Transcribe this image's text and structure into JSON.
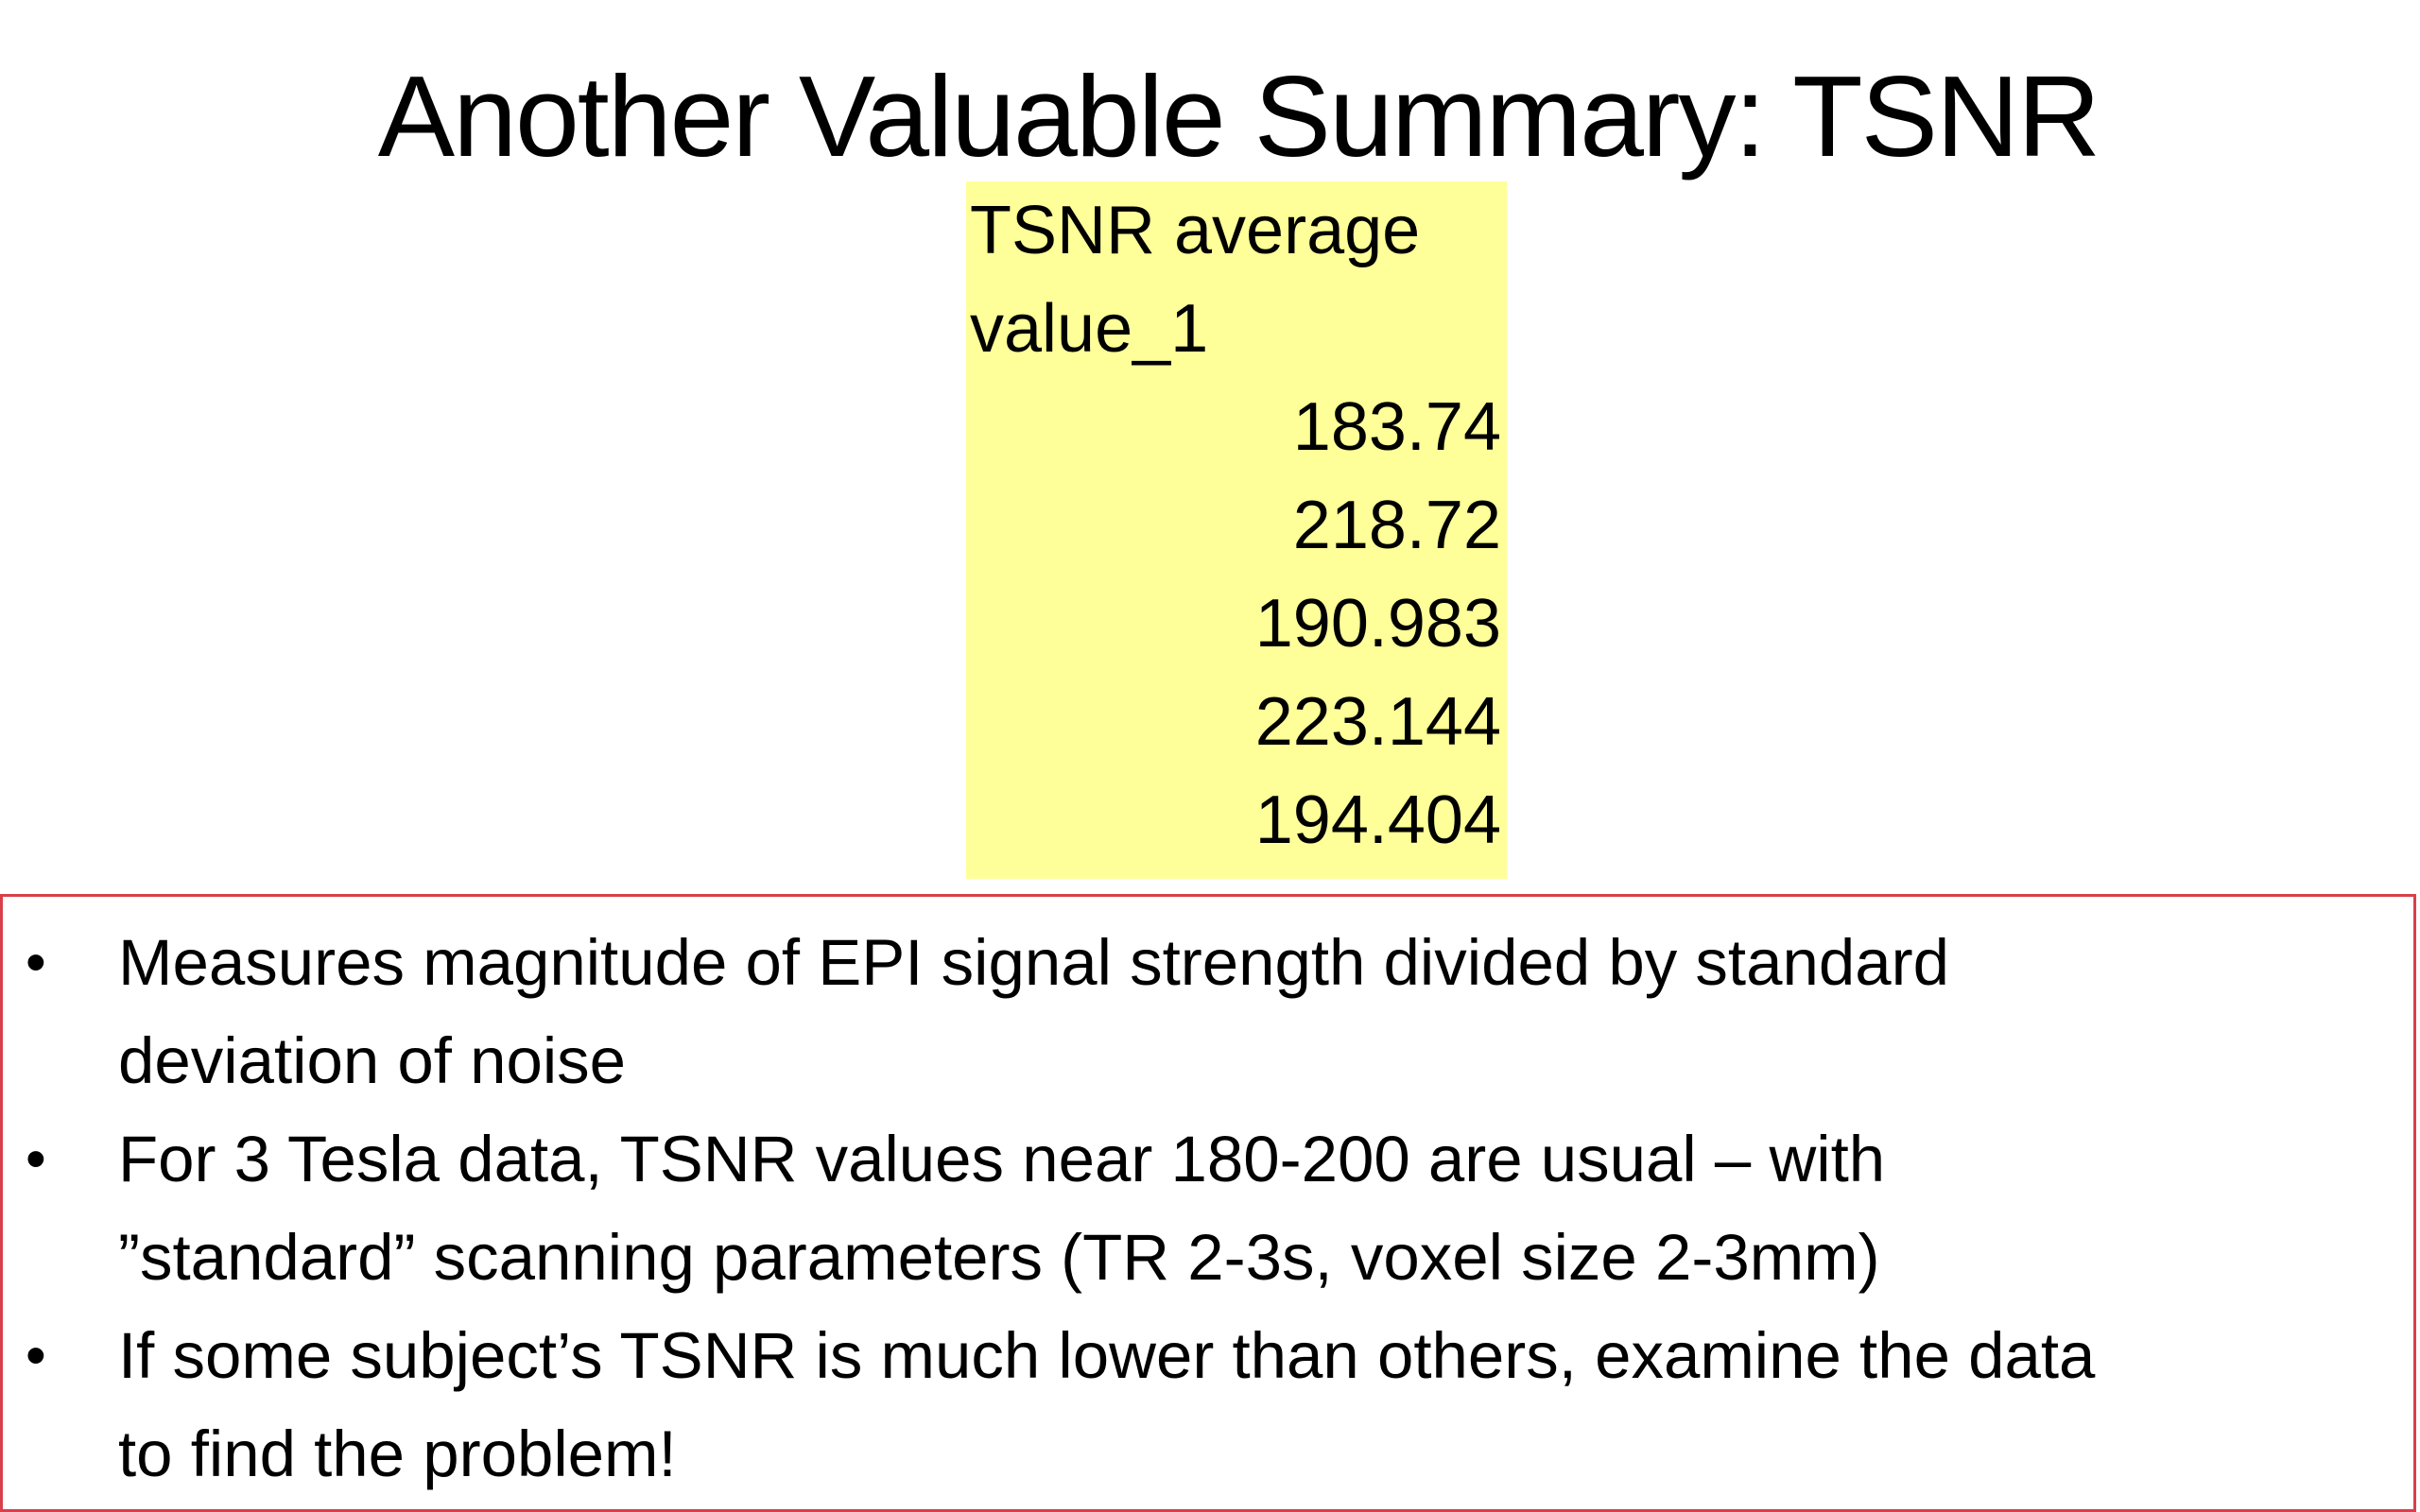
{
  "slide": {
    "title": "Another Valuable Summary: TSNR",
    "table": {
      "header_lines": [
        "TSNR average",
        "value_1"
      ],
      "values": [
        "183.74",
        "218.72",
        "190.983",
        "223.144",
        "194.404"
      ],
      "fill_color": "#ffff99"
    },
    "bullets": [
      {
        "lines": [
          "Measures magnitude of EPI signal strength divided by standard",
          "deviation of noise"
        ]
      },
      {
        "lines": [
          "For 3 Tesla data, TSNR values near 180-200 are usual – with",
          "”standard” scanning parameters (TR 2-3s, voxel size 2-3mm)"
        ]
      },
      {
        "lines": [
          "If some subject’s TSNR is much lower than others, examine the data",
          "to find the problem!"
        ]
      }
    ],
    "bullet_glyph": "•",
    "box_border_color": "#d9404a"
  }
}
